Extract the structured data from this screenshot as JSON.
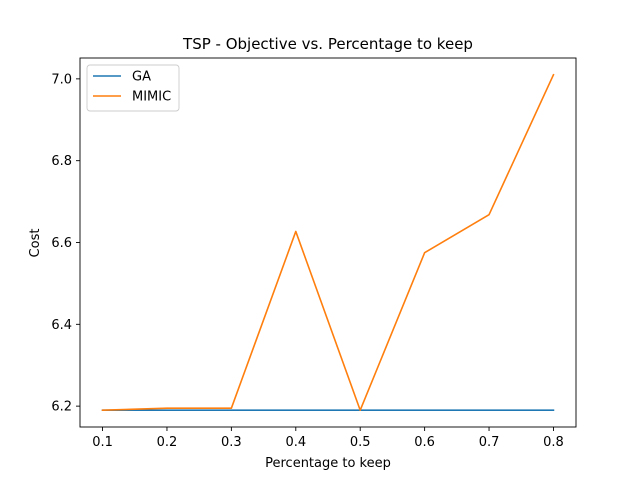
{
  "chart_data": {
    "type": "line",
    "title": "TSP - Objective vs. Percentage to keep",
    "xlabel": "Percentage to keep",
    "ylabel": "Cost",
    "x": [
      0.1,
      0.2,
      0.3,
      0.4,
      0.5,
      0.6,
      0.7,
      0.8
    ],
    "xticks": [
      "0.1",
      "0.2",
      "0.3",
      "0.4",
      "0.5",
      "0.6",
      "0.7",
      "0.8"
    ],
    "yticks": [
      "6.2",
      "6.4",
      "6.6",
      "6.8",
      "7.0"
    ],
    "xlim": [
      0.065,
      0.835
    ],
    "ylim": [
      6.149,
      7.051
    ],
    "legend_position": "top-left",
    "grid": false,
    "series": [
      {
        "name": "GA",
        "color": "#1f77b4",
        "values": [
          6.19,
          6.19,
          6.19,
          6.19,
          6.19,
          6.19,
          6.19,
          6.19
        ]
      },
      {
        "name": "MIMIC",
        "color": "#ff7f0e",
        "values": [
          6.19,
          6.195,
          6.195,
          6.627,
          6.19,
          6.575,
          6.668,
          7.01
        ]
      }
    ]
  }
}
